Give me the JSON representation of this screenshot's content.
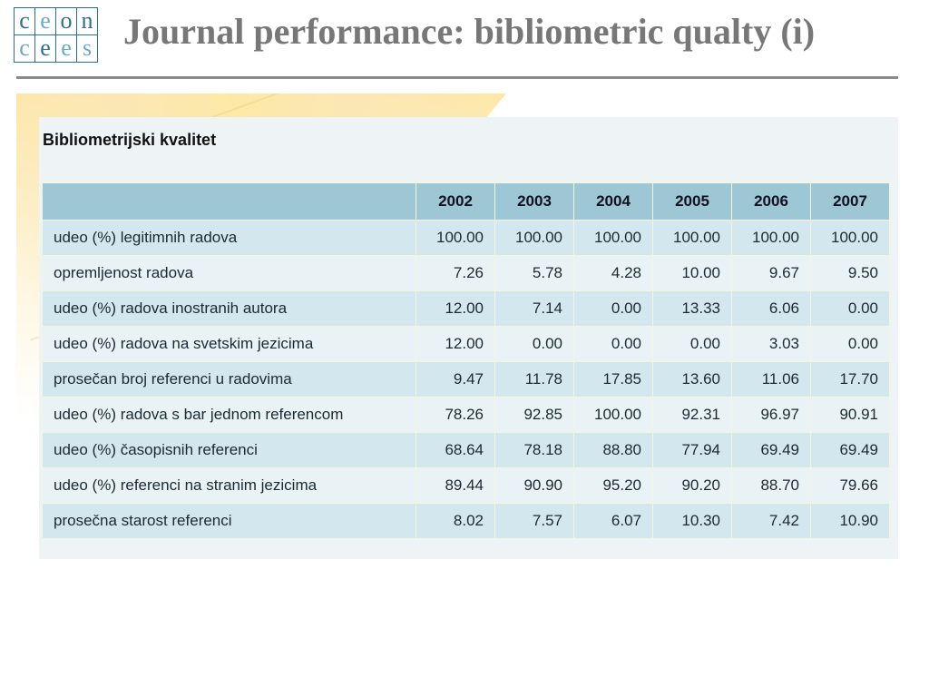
{
  "logo": {
    "letters": [
      {
        "ch": "c",
        "light": false
      },
      {
        "ch": "e",
        "light": true
      },
      {
        "ch": "o",
        "light": false
      },
      {
        "ch": "n",
        "light": false
      },
      {
        "ch": "c",
        "light": true
      },
      {
        "ch": "e",
        "light": false
      },
      {
        "ch": "e",
        "light": true
      },
      {
        "ch": "s",
        "light": true
      }
    ],
    "colors": {
      "dark": "#2f6f8a",
      "light": "#6aa9c3"
    }
  },
  "slide": {
    "title": "Journal performance: bibliometric qualty (i)"
  },
  "panel": {
    "title": "Bibliometrijski kvalitet"
  },
  "table": {
    "header": [
      "",
      "2002",
      "2003",
      "2004",
      "2005",
      "2006",
      "2007"
    ],
    "rows": [
      [
        "udeo (%) legitimnih radova",
        "100.00",
        "100.00",
        "100.00",
        "100.00",
        "100.00",
        "100.00"
      ],
      [
        "opremljenost radova",
        "7.26",
        "5.78",
        "4.28",
        "10.00",
        "9.67",
        "9.50"
      ],
      [
        "udeo (%) radova inostranih autora",
        "12.00",
        "7.14",
        "0.00",
        "13.33",
        "6.06",
        "0.00"
      ],
      [
        "udeo (%) radova na svetskim jezicima",
        "12.00",
        "0.00",
        "0.00",
        "0.00",
        "3.03",
        "0.00"
      ],
      [
        "prosečan broj referenci u radovima",
        "9.47",
        "11.78",
        "17.85",
        "13.60",
        "11.06",
        "17.70"
      ],
      [
        "udeo (%) radova s bar jednom referencom",
        "78.26",
        "92.85",
        "100.00",
        "92.31",
        "96.97",
        "90.91"
      ],
      [
        "udeo (%) časopisnih referenci",
        "68.64",
        "78.18",
        "88.80",
        "77.94",
        "69.49",
        "69.49"
      ],
      [
        "udeo (%) referenci na stranim jezicima",
        "89.44",
        "90.90",
        "95.20",
        "90.20",
        "88.70",
        "79.66"
      ],
      [
        "prosečna starost referenci",
        "8.02",
        "7.57",
        "6.07",
        "10.30",
        "7.42",
        "10.90"
      ]
    ]
  },
  "colors": {
    "header_bg": "#9ec7d6",
    "row_odd": "#d2e8ee",
    "row_even": "#e9f3f5",
    "title_text": "#777777"
  }
}
